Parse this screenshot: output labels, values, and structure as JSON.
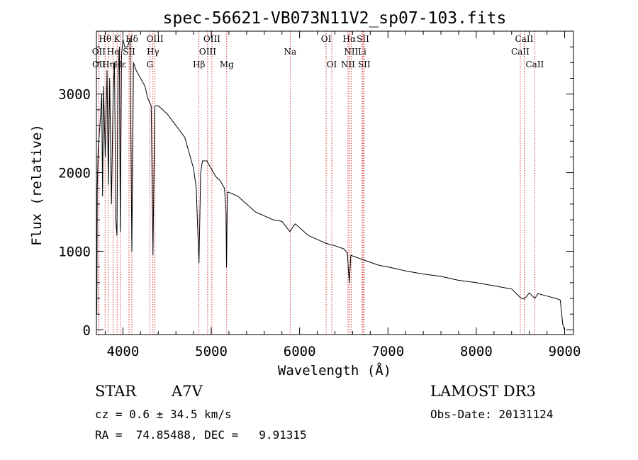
{
  "chart_data": {
    "type": "line",
    "title": "spec-56621-VB073N11V2_sp07-103.fits",
    "xlabel": "Wavelength (Å)",
    "ylabel": "Flux (relative)",
    "xlim": [
      3700,
      9100
    ],
    "ylim": [
      -60,
      3800
    ],
    "x_ticks": [
      4000,
      5000,
      6000,
      7000,
      8000,
      9000
    ],
    "x_tick_labels": [
      "4000",
      "5000",
      "6000",
      "7000",
      "8000",
      "9000"
    ],
    "y_ticks": [
      0,
      1000,
      2000,
      3000
    ],
    "y_tick_labels": [
      "0",
      "1000",
      "2000",
      "3000"
    ],
    "line_color": "#000000",
    "marker_color": "#cc0000",
    "spectrum": {
      "x": [
        3700,
        3705,
        3710,
        3720,
        3740,
        3760,
        3770,
        3780,
        3800,
        3820,
        3835,
        3850,
        3870,
        3889,
        3905,
        3920,
        3933,
        3945,
        3960,
        3970,
        3985,
        4000,
        4020,
        4050,
        4080,
        4101,
        4120,
        4150,
        4200,
        4250,
        4280,
        4300,
        4320,
        4340,
        4360,
        4400,
        4450,
        4500,
        4600,
        4700,
        4750,
        4800,
        4830,
        4861,
        4880,
        4900,
        4950,
        5000,
        5050,
        5100,
        5150,
        5167,
        5172,
        5183,
        5200,
        5300,
        5400,
        5500,
        5600,
        5700,
        5800,
        5890,
        5896,
        5950,
        6000,
        6100,
        6200,
        6300,
        6400,
        6500,
        6540,
        6563,
        6580,
        6600,
        6700,
        6800,
        6900,
        7000,
        7200,
        7400,
        7600,
        7800,
        8000,
        8200,
        8400,
        8498,
        8542,
        8600,
        8662,
        8700,
        8800,
        8900,
        8950,
        8980,
        9000
      ],
      "y": [
        1000,
        200,
        1800,
        2300,
        2600,
        3000,
        1700,
        3100,
        2200,
        3300,
        1850,
        3200,
        1600,
        3000,
        3400,
        1400,
        1200,
        3200,
        3600,
        1250,
        3500,
        3700,
        3600,
        3600,
        3700,
        1000,
        3400,
        3300,
        3200,
        3100,
        2950,
        2900,
        2850,
        950,
        2850,
        2850,
        2800,
        2750,
        2600,
        2450,
        2250,
        2050,
        1800,
        850,
        2000,
        2150,
        2150,
        2050,
        1950,
        1900,
        1800,
        1500,
        800,
        1750,
        1750,
        1700,
        1600,
        1500,
        1450,
        1400,
        1380,
        1250,
        1260,
        1350,
        1300,
        1200,
        1150,
        1100,
        1070,
        1030,
        980,
        600,
        950,
        940,
        900,
        860,
        820,
        800,
        750,
        710,
        680,
        630,
        600,
        560,
        520,
        410,
        390,
        470,
        400,
        460,
        430,
        400,
        380,
        60,
        0
      ]
    },
    "line_markers": [
      {
        "name": "Hθ",
        "x": 3798,
        "row": 0
      },
      {
        "name": "OII",
        "x": 3727,
        "row": 1
      },
      {
        "name": "OII",
        "x": 3729,
        "row": 2
      },
      {
        "name": "Hη",
        "x": 3835,
        "row": 2
      },
      {
        "name": "He",
        "x": 3889,
        "row": 1
      },
      {
        "name": "K",
        "x": 3934,
        "row": 0
      },
      {
        "name": "Hε",
        "x": 3970,
        "row": 2
      },
      {
        "name": "SII",
        "x": 4069,
        "row": 1
      },
      {
        "name": "Hδ",
        "x": 4101,
        "row": 0
      },
      {
        "name": "OIII",
        "x": 4363,
        "row": 0
      },
      {
        "name": "Hγ",
        "x": 4340,
        "row": 1
      },
      {
        "name": "G",
        "x": 4305,
        "row": 2
      },
      {
        "name": "Hβ",
        "x": 4861,
        "row": 2
      },
      {
        "name": "OIII",
        "x": 5007,
        "row": 0
      },
      {
        "name": "OIII",
        "x": 4959,
        "row": 1
      },
      {
        "name": "Mg",
        "x": 5175,
        "row": 2
      },
      {
        "name": "Na",
        "x": 5893,
        "row": 1
      },
      {
        "name": "OI",
        "x": 6300,
        "row": 0
      },
      {
        "name": "OI",
        "x": 6364,
        "row": 2
      },
      {
        "name": "Hα",
        "x": 6563,
        "row": 0
      },
      {
        "name": "NII",
        "x": 6583,
        "row": 1
      },
      {
        "name": "NII",
        "x": 6548,
        "row": 2
      },
      {
        "name": "SII",
        "x": 6717,
        "row": 0
      },
      {
        "name": "Li",
        "x": 6708,
        "row": 1
      },
      {
        "name": "SII",
        "x": 6731,
        "row": 2
      },
      {
        "name": "CaII",
        "x": 8542,
        "row": 0
      },
      {
        "name": "CaII",
        "x": 8498,
        "row": 1
      },
      {
        "name": "CaII",
        "x": 8662,
        "row": 2
      }
    ]
  },
  "info": {
    "object_class": "STAR",
    "subclass": "A7V",
    "survey": "LAMOST DR3",
    "redshift": "cz = 0.6 ± 34.5 km/s",
    "obs_date": "Obs-Date: 20131124",
    "coords": "RA =  74.85488, DEC =   9.91315"
  }
}
